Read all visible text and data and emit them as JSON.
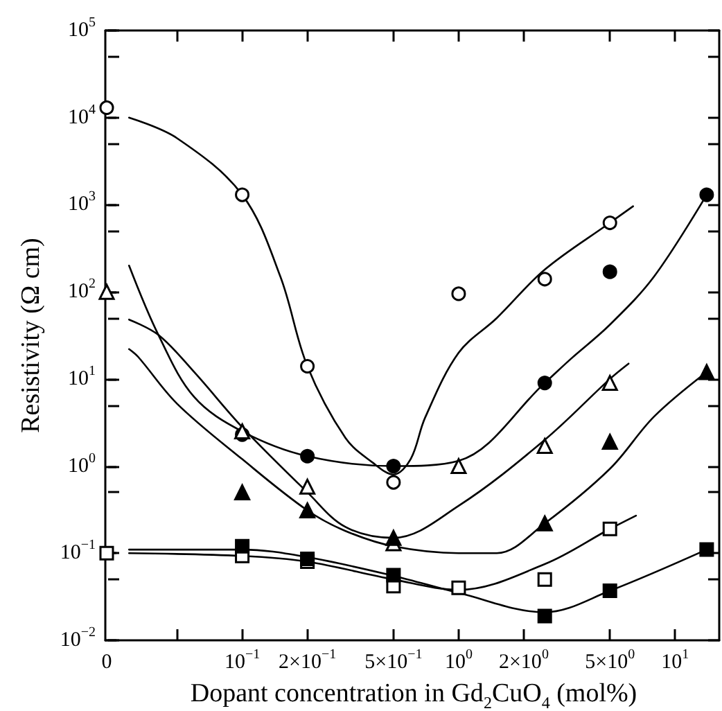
{
  "chart_data": [
    {
      "type": "scatter",
      "ylabel": "Resistivity (Ω cm)",
      "categories": [
        "0"
      ],
      "log": "y",
      "ylim": [
        0.01,
        100000
      ],
      "yticks": [
        {
          "value": 0.01,
          "label": "10$^{−2}$"
        },
        {
          "value": 0.1,
          "label": "10$^{−1}$"
        },
        {
          "value": 1,
          "label": "10$^{0}$"
        },
        {
          "value": 10,
          "label": "10$^{1}$"
        },
        {
          "value": 100,
          "label": "10$^{2}$"
        },
        {
          "value": 1000,
          "label": "10$^{3}$"
        },
        {
          "value": 10000,
          "label": "10$^{4}$"
        },
        {
          "value": 100000,
          "label": "10$^{5}$"
        }
      ],
      "grid": false,
      "series": [
        {
          "marker": "circle",
          "color": "#ffffff",
          "values": [
            13000
          ]
        },
        {
          "marker": "triangle",
          "color": "#ffffff",
          "values": [
            100
          ]
        },
        {
          "marker": "square",
          "color": "#ffffff",
          "values": [
            0.1
          ]
        }
      ]
    },
    {
      "type": "scatter",
      "xlabel": "Dopant concentration in Gd$_{2}$CuO$_{4}$ (mol%)",
      "log": "xy",
      "tick_labels": "x",
      "grid": false,
      "xlim": [
        0.024,
        16
      ],
      "xticks": [
        {
          "value": 0.05,
          "label": null
        },
        {
          "value": 0.1,
          "label": "10$^{−1}$"
        },
        {
          "value": 0.2,
          "label": "2×10$^{−1}$"
        },
        {
          "value": 0.5,
          "label": "5×10$^{−1}$"
        },
        {
          "value": 1,
          "label": "10$^{0}$"
        },
        {
          "value": 2,
          "label": "2×10$^{0}$"
        },
        {
          "value": 5,
          "label": "5×10$^{0}$"
        },
        {
          "value": 10,
          "label": "10$^{1}$"
        }
      ],
      "ylim": [
        0.01,
        100000
      ],
      "yticks": [
        0.01,
        0.05,
        0.1,
        0.5,
        1,
        5,
        10,
        50,
        100,
        500,
        1000,
        5000,
        10000,
        50000,
        100000
      ],
      "series": [
        {
          "type": "line",
          "marker": "none",
          "line_style": "solid",
          "color": "#000000",
          "x": [
            0.03,
            0.05,
            0.1,
            0.15,
            0.2,
            0.3,
            0.4,
            0.5,
            0.6,
            0.7,
            1,
            1.5,
            2.5,
            5,
            6.4
          ],
          "values": [
            10000,
            5800,
            1300,
            150,
            14,
            2.1,
            1.1,
            0.8,
            1.2,
            3.6,
            20,
            50,
            180,
            620,
            960
          ]
        },
        {
          "type": "line",
          "marker": "none",
          "line_style": "solid",
          "color": "#000000",
          "x": [
            0.03,
            0.041,
            0.06,
            0.1,
            0.2,
            0.5,
            1,
            2.5,
            3.3,
            5,
            8,
            14
          ],
          "values": [
            200,
            32,
            6.2,
            2.5,
            1.3,
            1.0,
            1.15,
            9,
            17,
            42,
            150,
            1300
          ]
        },
        {
          "type": "line",
          "marker": "none",
          "line_style": "solid",
          "color": "#000000",
          "x": [
            0.03,
            0.041,
            0.06,
            0.1,
            0.2,
            0.3,
            0.5,
            1,
            2.5,
            5,
            6.1
          ],
          "values": [
            48,
            32,
            12,
            2.8,
            0.5,
            0.2,
            0.15,
            0.35,
            2,
            10,
            15
          ]
        },
        {
          "type": "line",
          "marker": "none",
          "line_style": "solid",
          "color": "#000000",
          "x": [
            0.03,
            0.033,
            0.05,
            0.1,
            0.2,
            0.3,
            0.5,
            1,
            1.5,
            2.5,
            5,
            8,
            14
          ],
          "values": [
            22,
            18,
            5.2,
            1.2,
            0.31,
            0.18,
            0.12,
            0.1,
            0.1,
            0.22,
            0.93,
            3.7,
            12
          ]
        },
        {
          "type": "line",
          "marker": "none",
          "line_style": "solid",
          "color": "#000000",
          "x": [
            0.03,
            0.1,
            0.2,
            0.5,
            1,
            2.5,
            5,
            6.6
          ],
          "values": [
            0.1,
            0.093,
            0.08,
            0.05,
            0.038,
            0.075,
            0.19,
            0.27
          ]
        },
        {
          "type": "line",
          "marker": "none",
          "line_style": "solid",
          "color": "#000000",
          "x": [
            0.03,
            0.1,
            0.2,
            0.5,
            1,
            2.5,
            5,
            14
          ],
          "values": [
            0.11,
            0.11,
            0.09,
            0.055,
            0.035,
            0.021,
            0.037,
            0.11
          ]
        },
        {
          "marker": "circle",
          "color": "#ffffff",
          "x": [
            0.1,
            0.2,
            0.5,
            1,
            2.5,
            5
          ],
          "values": [
            1300,
            14,
            0.65,
            95,
            140,
            620
          ]
        },
        {
          "marker": "circle",
          "color": "#000000",
          "x": [
            0.1,
            0.2,
            0.5,
            2.5,
            5,
            14
          ],
          "values": [
            2.3,
            1.3,
            1.0,
            9,
            170,
            1300
          ]
        },
        {
          "marker": "triangle",
          "color": "#ffffff",
          "x": [
            0.1,
            0.2,
            0.5,
            1,
            2.5,
            5
          ],
          "values": [
            2.5,
            0.58,
            0.13,
            1.0,
            1.7,
            9
          ]
        },
        {
          "marker": "triangle",
          "color": "#000000",
          "x": [
            0.1,
            0.2,
            0.5,
            2.5,
            5,
            14
          ],
          "values": [
            0.5,
            0.31,
            0.15,
            0.22,
            1.9,
            12
          ]
        },
        {
          "marker": "square",
          "color": "#ffffff",
          "x": [
            0.1,
            0.2,
            0.5,
            1,
            2.5,
            5
          ],
          "values": [
            0.093,
            0.08,
            0.042,
            0.04,
            0.05,
            0.19
          ]
        },
        {
          "marker": "square",
          "color": "#000000",
          "x": [
            0.1,
            0.2,
            0.5,
            2.5,
            5,
            14
          ],
          "values": [
            0.12,
            0.086,
            0.056,
            0.019,
            0.037,
            0.11
          ]
        }
      ]
    }
  ]
}
